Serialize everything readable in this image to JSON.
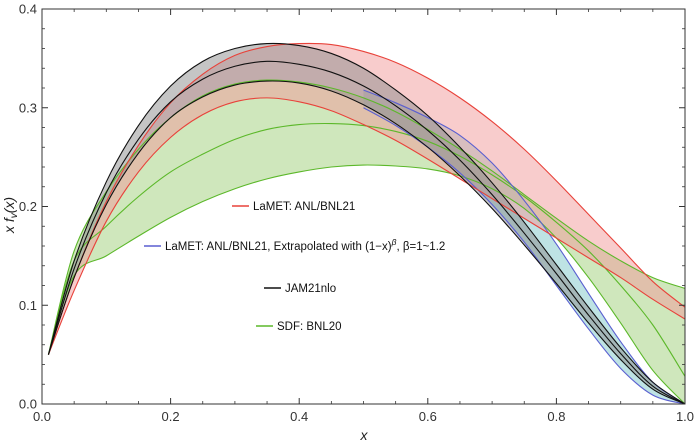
{
  "chart_data": {
    "type": "area",
    "xlabel": "x",
    "ylabel": "x f_v(x)",
    "xlim": [
      0,
      1
    ],
    "ylim": [
      0,
      0.4
    ],
    "x_ticks": [
      "0.0",
      "0.2",
      "0.4",
      "0.6",
      "0.8",
      "1.0"
    ],
    "y_ticks": [
      "0.0",
      "0.1",
      "0.2",
      "0.3",
      "0.4"
    ],
    "grid": false,
    "legend_placement": "center-left",
    "legend": [
      {
        "label": "LaMET: ANL/BNL21",
        "color": "#e8423a"
      },
      {
        "label_main": "LaMET: ANL/BNL21, Extrapolated with (1−x)",
        "label_sup": "β",
        "label_tail": ", β=1~1.2",
        "color": "#5a5fd0"
      },
      {
        "label": "JAM21nlo",
        "color": "#111111"
      },
      {
        "label": "SDF: BNL20",
        "color": "#5cb82a"
      }
    ],
    "x": [
      0.01,
      0.05,
      0.1,
      0.15,
      0.2,
      0.25,
      0.3,
      0.35,
      0.4,
      0.45,
      0.5,
      0.55,
      0.6,
      0.65,
      0.7,
      0.75,
      0.8,
      0.85,
      0.9,
      0.95,
      1.0
    ],
    "series": [
      {
        "name": "SDF: BNL20",
        "color": "#5cb82a",
        "fill": "#9fd07a",
        "upper": [
          0.05,
          0.155,
          0.215,
          0.258,
          0.29,
          0.312,
          0.324,
          0.328,
          0.326,
          0.32,
          0.31,
          0.296,
          0.278,
          0.258,
          0.236,
          0.212,
          0.188,
          0.165,
          0.145,
          0.128,
          0.117
        ],
        "central": [
          0.05,
          0.145,
          0.18,
          0.21,
          0.235,
          0.253,
          0.268,
          0.278,
          0.283,
          0.284,
          0.282,
          0.276,
          0.266,
          0.251,
          0.232,
          0.21,
          0.184,
          0.155,
          0.12,
          0.08,
          0.028
        ],
        "lower": [
          0.05,
          0.13,
          0.15,
          0.17,
          0.189,
          0.205,
          0.218,
          0.228,
          0.235,
          0.24,
          0.242,
          0.241,
          0.238,
          0.231,
          0.218,
          0.198,
          0.168,
          0.128,
          0.082,
          0.034,
          0.0
        ]
      },
      {
        "name": "LaMET: ANL/BNL21, Extrapolated",
        "color": "#5a5fd0",
        "fill": "#7ec7c9",
        "upper": [
          null,
          null,
          null,
          null,
          null,
          null,
          null,
          null,
          null,
          null,
          0.318,
          0.305,
          0.29,
          0.272,
          0.244,
          0.206,
          0.162,
          0.112,
          0.063,
          0.022,
          0.0
        ],
        "lower": [
          null,
          null,
          null,
          null,
          null,
          null,
          null,
          null,
          null,
          null,
          0.3,
          0.282,
          0.26,
          0.234,
          0.202,
          0.164,
          0.12,
          0.076,
          0.036,
          0.009,
          0.0
        ]
      },
      {
        "name": "LaMET: ANL/BNL21",
        "color": "#e8423a",
        "fill": "#f19a9a",
        "upper": [
          0.05,
          0.128,
          0.205,
          0.262,
          0.305,
          0.334,
          0.353,
          0.362,
          0.365,
          0.364,
          0.357,
          0.346,
          0.33,
          0.31,
          0.286,
          0.258,
          0.226,
          0.192,
          0.158,
          0.124,
          0.098
        ],
        "lower": [
          0.05,
          0.115,
          0.185,
          0.235,
          0.27,
          0.293,
          0.306,
          0.31,
          0.306,
          0.297,
          0.283,
          0.267,
          0.248,
          0.228,
          0.208,
          0.188,
          0.168,
          0.148,
          0.128,
          0.106,
          0.086
        ]
      },
      {
        "name": "JAM21nlo",
        "color": "#111111",
        "fill": "#8c8c8c",
        "upper": [
          0.05,
          0.145,
          0.225,
          0.282,
          0.322,
          0.347,
          0.36,
          0.365,
          0.363,
          0.355,
          0.34,
          0.318,
          0.292,
          0.26,
          0.224,
          0.184,
          0.141,
          0.098,
          0.057,
          0.022,
          0.0
        ],
        "central": [
          0.05,
          0.137,
          0.214,
          0.268,
          0.306,
          0.329,
          0.342,
          0.347,
          0.344,
          0.336,
          0.322,
          0.302,
          0.277,
          0.247,
          0.212,
          0.173,
          0.132,
          0.09,
          0.051,
          0.018,
          0.0
        ],
        "lower": [
          0.05,
          0.128,
          0.202,
          0.254,
          0.29,
          0.311,
          0.323,
          0.327,
          0.325,
          0.317,
          0.303,
          0.284,
          0.26,
          0.231,
          0.198,
          0.161,
          0.122,
          0.082,
          0.045,
          0.015,
          0.0
        ]
      }
    ]
  }
}
